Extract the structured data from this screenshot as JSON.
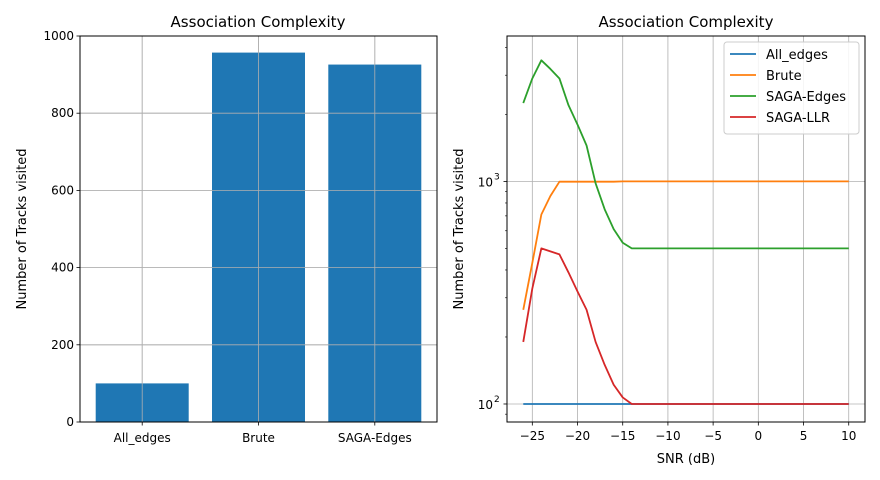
{
  "chart_data": [
    {
      "type": "bar",
      "title": "Association Complexity",
      "xlabel": "",
      "ylabel": "Number of Tracks visited",
      "categories": [
        "All_edges",
        "Brute",
        "SAGA-Edges"
      ],
      "values": [
        100,
        957,
        926
      ],
      "ylim": [
        0,
        1000
      ],
      "yticks": [
        0,
        200,
        400,
        600,
        800,
        1000
      ],
      "grid": true,
      "color": "#1f77b4"
    },
    {
      "type": "line",
      "title": "Association Complexity",
      "xlabel": "SNR (dB)",
      "ylabel": "Number of Tracks visited",
      "yscale": "log",
      "xlim": [
        -27.8,
        11.8
      ],
      "ylim": [
        83,
        4500
      ],
      "xticks": [
        -25,
        -20,
        -15,
        -10,
        -5,
        0,
        5,
        10
      ],
      "xtick_labels": [
        "−25",
        "−20",
        "−15",
        "−10",
        "−5",
        "0",
        "5",
        "10"
      ],
      "ytick_labels": [
        "10",
        "10"
      ],
      "ytick_exponents": [
        "2",
        "3"
      ],
      "yticks_major": [
        100,
        1000
      ],
      "grid": true,
      "legend_position": "top-right",
      "x": [
        -26,
        -25,
        -24,
        -23,
        -22,
        -21,
        -20,
        -19,
        -18,
        -17,
        -16,
        -15,
        -14,
        -13,
        -12,
        -11,
        -10,
        -9,
        -8,
        -7,
        -6,
        -5,
        -4,
        -3,
        -2,
        -1,
        0,
        1,
        2,
        3,
        4,
        5,
        6,
        7,
        8,
        9,
        10
      ],
      "series": [
        {
          "name": "All_edges",
          "color": "#1f77b4",
          "values": [
            100,
            100,
            100,
            100,
            100,
            100,
            100,
            100,
            100,
            100,
            100,
            100,
            100,
            100,
            100,
            100,
            100,
            100,
            100,
            100,
            100,
            100,
            100,
            100,
            100,
            100,
            100,
            100,
            100,
            100,
            100,
            100,
            100,
            100,
            100,
            100,
            100
          ]
        },
        {
          "name": "Brute",
          "color": "#ff7f0e",
          "values": [
            265,
            430,
            710,
            860,
            997,
            997,
            997,
            997,
            997,
            997,
            997,
            1000,
            1000,
            1000,
            1000,
            1000,
            1000,
            1000,
            1000,
            1000,
            1000,
            1000,
            1000,
            1000,
            1000,
            1000,
            1000,
            1000,
            1000,
            1000,
            1000,
            1000,
            1000,
            1000,
            1000,
            1000,
            1000
          ]
        },
        {
          "name": "SAGA-Edges",
          "color": "#2ca02c",
          "values": [
            2250,
            2900,
            3500,
            3200,
            2900,
            2200,
            1800,
            1450,
            980,
            750,
            610,
            530,
            500,
            500,
            500,
            500,
            500,
            500,
            500,
            500,
            500,
            500,
            500,
            500,
            500,
            500,
            500,
            500,
            500,
            500,
            500,
            500,
            500,
            500,
            500,
            500,
            500
          ]
        },
        {
          "name": "SAGA-LLR",
          "color": "#d62728",
          "values": [
            190,
            330,
            500,
            485,
            470,
            390,
            320,
            265,
            190,
            150,
            122,
            107,
            100,
            100,
            100,
            100,
            100,
            100,
            100,
            100,
            100,
            100,
            100,
            100,
            100,
            100,
            100,
            100,
            100,
            100,
            100,
            100,
            100,
            100,
            100,
            100,
            100
          ]
        }
      ]
    }
  ]
}
